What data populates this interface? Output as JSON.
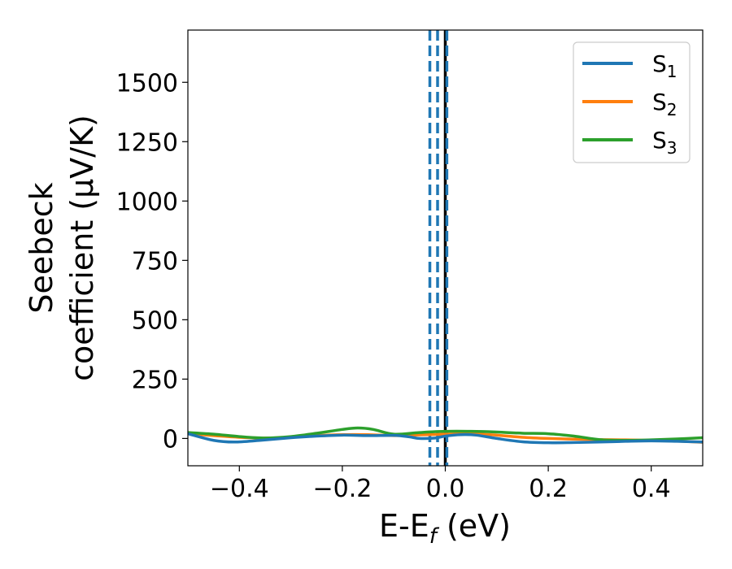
{
  "chart_data": {
    "type": "line",
    "xlabel": {
      "main": "E-E",
      "sub": "f",
      "suffix": " (eV)"
    },
    "ylabel": {
      "line1": "Seebeck",
      "line2": "coefficient  (μV/K)"
    },
    "xlim": [
      -0.5,
      0.5
    ],
    "ylim": [
      -115,
      1720
    ],
    "xticks": [
      -0.4,
      -0.2,
      0.0,
      0.2,
      0.4
    ],
    "xtick_labels": [
      "−0.4",
      "−0.2",
      "0.0",
      "0.2",
      "0.4"
    ],
    "yticks": [
      0,
      250,
      500,
      750,
      1000,
      1250,
      1500
    ],
    "ytick_labels": [
      "0",
      "250",
      "500",
      "750",
      "1000",
      "1250",
      "1500"
    ],
    "grid": false,
    "legend_position": "top-right",
    "vertical_lines": [
      {
        "x": -0.03,
        "color": "#1f77b4",
        "style": "dashed"
      },
      {
        "x": -0.015,
        "color": "#1f77b4",
        "style": "dashed"
      },
      {
        "x": 0.0,
        "color": "#000000",
        "style": "solid"
      },
      {
        "x": 0.003,
        "color": "#1f77b4",
        "style": "dashed"
      }
    ],
    "series": [
      {
        "name": "S",
        "sub": "1",
        "color": "#1f77b4",
        "x": [
          -0.5,
          -0.45,
          -0.41,
          -0.36,
          -0.3,
          -0.25,
          -0.2,
          -0.15,
          -0.1,
          -0.07,
          -0.05,
          -0.02,
          0.0,
          0.03,
          0.06,
          0.1,
          0.15,
          0.2,
          0.25,
          0.3,
          0.35,
          0.4,
          0.45,
          0.5
        ],
        "y": [
          20,
          -8,
          -15,
          -8,
          3,
          10,
          14,
          12,
          13,
          7,
          0,
          2,
          10,
          16,
          14,
          0,
          -14,
          -18,
          -17,
          -15,
          -12,
          -10,
          -12,
          -15
        ]
      },
      {
        "name": "S",
        "sub": "2",
        "color": "#ff7f0e",
        "x": [
          -0.5,
          -0.45,
          -0.4,
          -0.35,
          -0.3,
          -0.25,
          -0.2,
          -0.15,
          -0.1,
          -0.05,
          0.0,
          0.05,
          0.1,
          0.15,
          0.2,
          0.25,
          0.3,
          0.35,
          0.4,
          0.45,
          0.5
        ],
        "y": [
          20,
          12,
          5,
          2,
          5,
          12,
          16,
          16,
          12,
          15,
          18,
          20,
          14,
          5,
          0,
          -3,
          -5,
          -6,
          -8,
          -11,
          -16
        ]
      },
      {
        "name": "S",
        "sub": "3",
        "color": "#2ca02c",
        "x": [
          -0.5,
          -0.45,
          -0.4,
          -0.35,
          -0.3,
          -0.25,
          -0.2,
          -0.17,
          -0.14,
          -0.1,
          -0.05,
          0.0,
          0.05,
          0.1,
          0.15,
          0.2,
          0.25,
          0.3,
          0.35,
          0.4,
          0.45,
          0.5
        ],
        "y": [
          25,
          18,
          8,
          2,
          8,
          22,
          38,
          44,
          38,
          18,
          25,
          30,
          30,
          27,
          22,
          20,
          10,
          -5,
          -8,
          -6,
          -2,
          3
        ]
      }
    ]
  }
}
